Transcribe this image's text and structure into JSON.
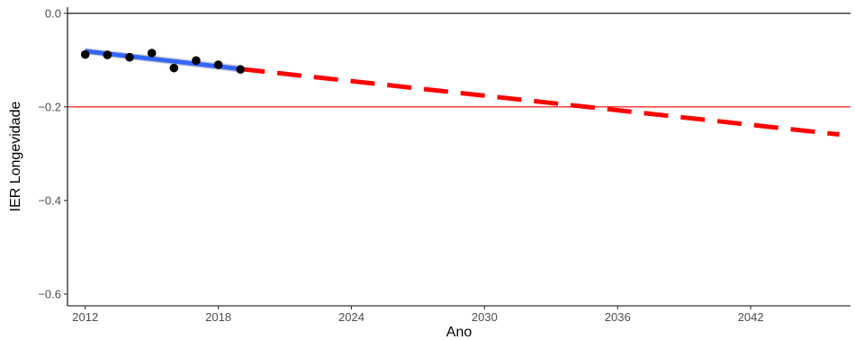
{
  "chart_data": {
    "type": "line",
    "xlabel": "Ano",
    "ylabel": "IER Longevidade",
    "xlim": [
      2011.2,
      2046.5
    ],
    "ylim": [
      -0.625,
      0.013
    ],
    "x_ticks": [
      2012,
      2018,
      2024,
      2030,
      2036,
      2042
    ],
    "y_ticks": [
      0.0,
      -0.2,
      -0.4,
      -0.6
    ],
    "x_tick_labels": [
      "2012",
      "2018",
      "2024",
      "2030",
      "2036",
      "2042"
    ],
    "y_tick_labels": [
      "0.0",
      "-0.2",
      "-0.4",
      "-0.6"
    ],
    "reference_lines": [
      {
        "axis": "y",
        "value": 0.0,
        "color": "#000000"
      },
      {
        "axis": "y",
        "value": -0.2,
        "color": "#ff0000"
      }
    ],
    "series": [
      {
        "type": "scatter",
        "x": [
          2012,
          2013,
          2014,
          2015,
          2016,
          2017,
          2018,
          2019
        ],
        "y": [
          -0.088,
          -0.089,
          -0.094,
          -0.085,
          -0.117,
          -0.101,
          -0.11,
          -0.12
        ],
        "color": "#000000"
      },
      {
        "type": "line",
        "style": "solid",
        "x": [
          2012,
          2019
        ],
        "y": [
          -0.081,
          -0.119
        ],
        "color": "#3366ff",
        "confidence_band": {
          "lower": [
            -0.088,
            -0.127
          ],
          "upper": [
            -0.074,
            -0.111
          ]
        }
      },
      {
        "type": "line",
        "style": "dashed",
        "x": [
          2019,
          2046
        ],
        "y": [
          -0.119,
          -0.259
        ],
        "color": "#ff0000"
      }
    ],
    "grid": false,
    "legend": "none"
  }
}
